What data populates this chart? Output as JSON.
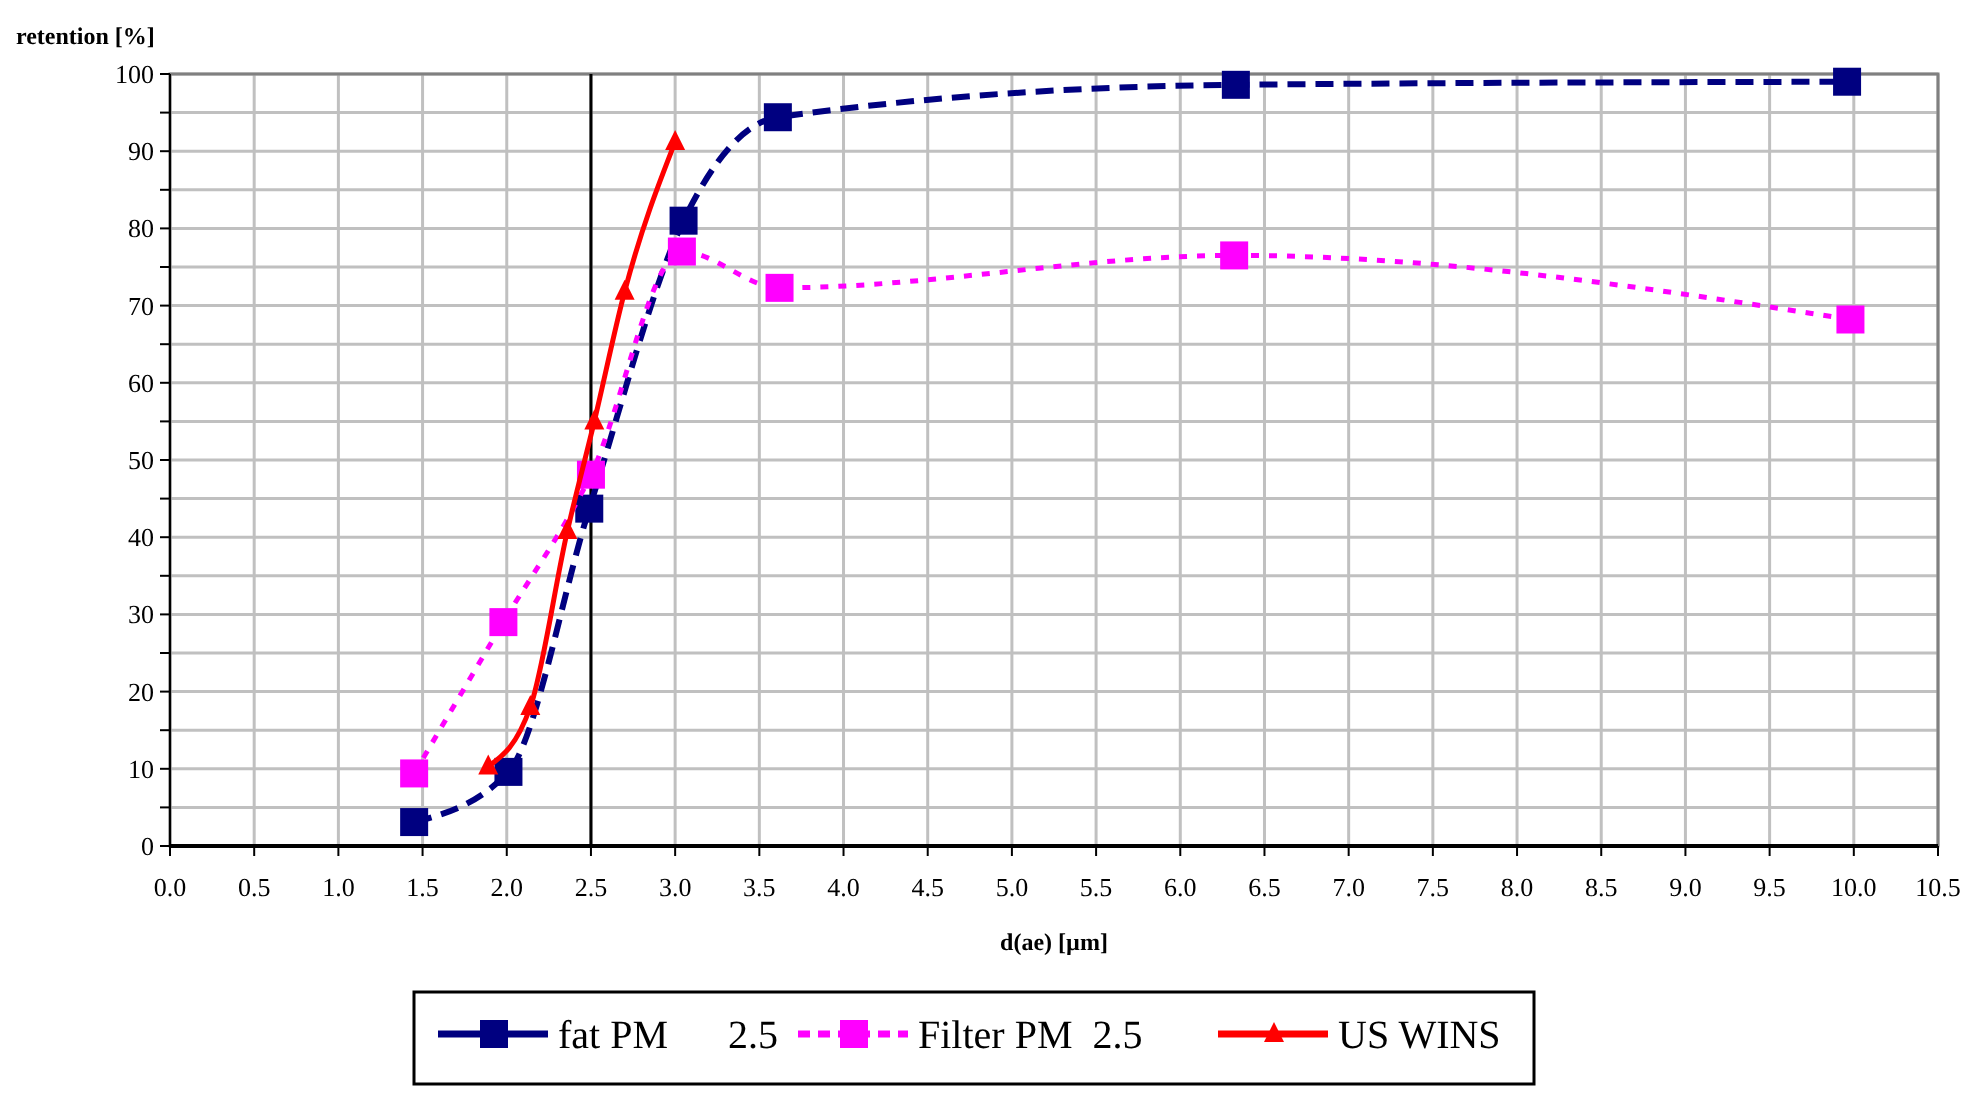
{
  "chart_data": {
    "type": "line",
    "ylabel": "retention [%]",
    "xlabel": "d(ae)  [µm]",
    "xlim": [
      0,
      10.5
    ],
    "xticks": [
      {
        "value": 0,
        "label": "0.0"
      },
      {
        "value": 0.5,
        "label": "0.5"
      },
      {
        "value": 1,
        "label": "1.0"
      },
      {
        "value": 1.5,
        "label": "1.5"
      },
      {
        "value": 2,
        "label": "2.0"
      },
      {
        "value": 2.5,
        "label": "2.5"
      },
      {
        "value": 3,
        "label": "3.0"
      },
      {
        "value": 3.5,
        "label": "3.5"
      },
      {
        "value": 4,
        "label": "4.0"
      },
      {
        "value": 4.5,
        "label": "4.5"
      },
      {
        "value": 5,
        "label": "5.0"
      },
      {
        "value": 5.5,
        "label": "5.5"
      },
      {
        "value": 6,
        "label": "6.0"
      },
      {
        "value": 6.5,
        "label": "6.5"
      },
      {
        "value": 7,
        "label": "7.0"
      },
      {
        "value": 7.5,
        "label": "7.5"
      },
      {
        "value": 8,
        "label": "8.0"
      },
      {
        "value": 8.5,
        "label": "8.5"
      },
      {
        "value": 9,
        "label": "9.0"
      },
      {
        "value": 9.5,
        "label": "9.5"
      },
      {
        "value": 10,
        "label": "10.0"
      },
      {
        "value": 10.5,
        "label": "10.5"
      }
    ],
    "ylim": [
      0,
      100
    ],
    "yticks": [
      0,
      {
        "value": 5,
        "label": null
      },
      10,
      {
        "value": 15,
        "label": null
      },
      20,
      {
        "value": 25,
        "label": null
      },
      30,
      {
        "value": 35,
        "label": null
      },
      40,
      {
        "value": 45,
        "label": null
      },
      50,
      {
        "value": 55,
        "label": null
      },
      60,
      {
        "value": 65,
        "label": null
      },
      70,
      {
        "value": 75,
        "label": null
      },
      80,
      {
        "value": 85,
        "label": null
      },
      90,
      {
        "value": 95,
        "label": null
      },
      100
    ],
    "grid": true,
    "legend": "bottom",
    "ref_lines": [
      {
        "axis": "x",
        "value": 2.5,
        "color": "#000000"
      }
    ],
    "series": [
      {
        "name": "fat PM      2.5",
        "color": "#000080",
        "marker": "square",
        "line_style": "dashed",
        "x": [
          1.45,
          2.01,
          2.49,
          3.05,
          3.61,
          6.33,
          9.96
        ],
        "values": [
          3.1,
          9.6,
          43.7,
          81,
          94.4,
          98.6,
          99
        ]
      },
      {
        "name": "Filter PM  2.5",
        "color": "#ff00ff",
        "marker": "square",
        "line_style": "dotted",
        "x": [
          1.45,
          1.98,
          2.5,
          3.04,
          3.62,
          6.32,
          9.98
        ],
        "values": [
          9.4,
          29,
          48.1,
          77,
          72.3,
          76.5,
          68.2
        ]
      },
      {
        "name": "US WINS",
        "color": "#ff0000",
        "marker": "triangle",
        "line_style": "solid",
        "x": [
          1.89,
          2.14,
          2.36,
          2.52,
          2.7,
          3.0
        ],
        "values": [
          10.3,
          18,
          40.8,
          55,
          71.8,
          91.2
        ]
      }
    ]
  }
}
